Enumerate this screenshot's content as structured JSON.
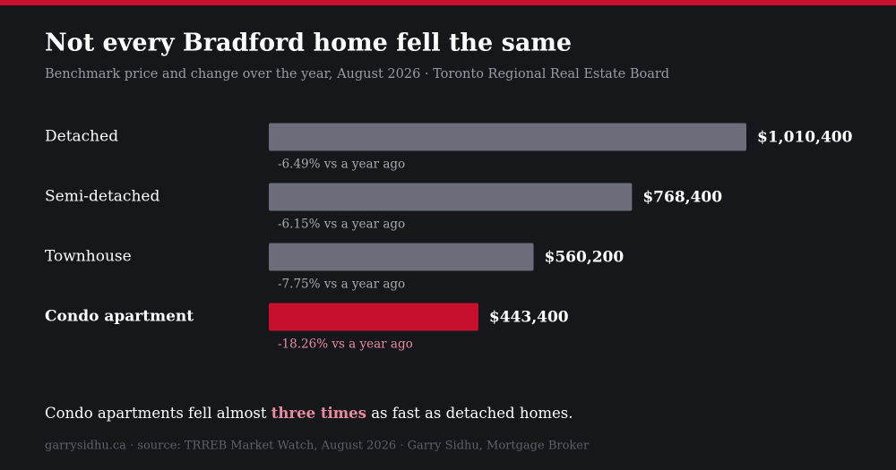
{
  "chart_data": {
    "type": "hbar",
    "title": "Not every Bradford home fell the same",
    "subtitle": "Benchmark price and change over the year, August 2026 · Toronto Regional Real Estate Board",
    "categories": [
      "Detached",
      "Semi-detached",
      "Townhouse",
      "Condo apartment"
    ],
    "values": [
      1010400,
      768400,
      560200,
      443400
    ],
    "value_labels": [
      "$1,010,400",
      "$768,400",
      "$560,200",
      "$443,400"
    ],
    "annotations": [
      "-6.49% vs a year ago",
      "-6.15% vs a year ago",
      "-7.75% vs a year ago",
      "-18.26% vs a year ago"
    ],
    "colors": [
      "#6b6e7a",
      "#6b6e7a",
      "#6b6e7a",
      "#c8102e"
    ],
    "highlight": 3,
    "takeaway": [
      "Condo apartments fell almost ",
      "three times",
      " as fast as detached homes."
    ],
    "footer": "garrysidhu.ca · source: TRREB Market Watch, August 2026 · Garry Sidhu, Mortgage Broker"
  }
}
